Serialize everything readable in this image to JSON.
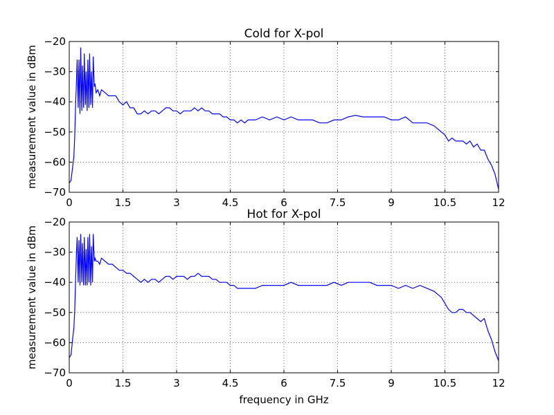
{
  "figure": {
    "xlabel": "frequency in GHz"
  },
  "chart_data": [
    {
      "type": "line",
      "title": "Cold for X-pol",
      "xlabel": "",
      "ylabel": "measurement value in dBm",
      "xlim": [
        0,
        12
      ],
      "ylim": [
        -70,
        -20
      ],
      "xticks": [
        "0",
        "1.5",
        "3",
        "4.5",
        "6",
        "7.5",
        "9",
        "10.5",
        "12"
      ],
      "yticks": [
        "−20",
        "−30",
        "−40",
        "−50",
        "−60",
        "−70"
      ],
      "grid": true,
      "line_color": "#0000ff",
      "series": [
        {
          "x": [
            0,
            0.05,
            0.1,
            0.13,
            0.15,
            0.18,
            0.2,
            0.22,
            0.25,
            0.27,
            0.3,
            0.32,
            0.35,
            0.37,
            0.4,
            0.42,
            0.45,
            0.47,
            0.5,
            0.52,
            0.55,
            0.57,
            0.6,
            0.62,
            0.65,
            0.67,
            0.7,
            0.72,
            0.75,
            0.8,
            0.85,
            0.9,
            1.0,
            1.1,
            1.2,
            1.3,
            1.4,
            1.5,
            1.6,
            1.7,
            1.8,
            1.9,
            2.0,
            2.1,
            2.2,
            2.3,
            2.4,
            2.5,
            2.6,
            2.7,
            2.8,
            2.9,
            3.0,
            3.1,
            3.2,
            3.3,
            3.4,
            3.5,
            3.6,
            3.7,
            3.8,
            3.9,
            4.0,
            4.1,
            4.2,
            4.3,
            4.4,
            4.5,
            4.6,
            4.7,
            4.8,
            4.9,
            5.0,
            5.2,
            5.4,
            5.6,
            5.8,
            6.0,
            6.2,
            6.4,
            6.6,
            6.8,
            7.0,
            7.2,
            7.4,
            7.6,
            7.8,
            8.0,
            8.2,
            8.4,
            8.6,
            8.8,
            9.0,
            9.2,
            9.4,
            9.6,
            9.8,
            10.0,
            10.2,
            10.4,
            10.5,
            10.6,
            10.7,
            10.8,
            10.9,
            11.0,
            11.1,
            11.2,
            11.3,
            11.4,
            11.5,
            11.6,
            11.7,
            11.8,
            11.9,
            12.0
          ],
          "y": [
            -67,
            -66,
            -61,
            -58,
            -52,
            -40,
            -34,
            -26,
            -42,
            -26,
            -44,
            -22,
            -43,
            -28,
            -42,
            -24,
            -41,
            -30,
            -43,
            -26,
            -42,
            -24,
            -41,
            -30,
            -42,
            -25,
            -35,
            -34,
            -37,
            -36,
            -38,
            -36,
            -37,
            -38,
            -38,
            -38,
            -40,
            -41,
            -40,
            -42,
            -42,
            -44,
            -44,
            -43,
            -44,
            -43,
            -43,
            -44,
            -43,
            -42,
            -42,
            -43,
            -43,
            -44,
            -43,
            -43,
            -43,
            -42,
            -43,
            -42,
            -43,
            -43,
            -44,
            -44,
            -44,
            -45,
            -45,
            -46,
            -46,
            -47,
            -46,
            -47,
            -46,
            -46,
            -45,
            -46,
            -45,
            -46,
            -45,
            -46,
            -46,
            -46,
            -47,
            -47,
            -46,
            -46,
            -45,
            -44.5,
            -45,
            -45,
            -45,
            -45,
            -46,
            -46,
            -45,
            -47,
            -47,
            -47,
            -48,
            -50,
            -51,
            -53,
            -52,
            -53,
            -53,
            -53,
            -54,
            -53,
            -55,
            -54,
            -56,
            -56,
            -59,
            -61,
            -64,
            -69
          ]
        }
      ]
    },
    {
      "type": "line",
      "title": "Hot for X-pol",
      "xlabel": "frequency in GHz",
      "ylabel": "measurement value in dBm",
      "xlim": [
        0,
        12
      ],
      "ylim": [
        -70,
        -20
      ],
      "xticks": [
        "0",
        "1.5",
        "3",
        "4.5",
        "6",
        "7.5",
        "9",
        "10.5",
        "12"
      ],
      "yticks": [
        "−20",
        "−30",
        "−40",
        "−50",
        "−60",
        "−70"
      ],
      "grid": true,
      "line_color": "#0000ff",
      "series": [
        {
          "x": [
            0,
            0.05,
            0.1,
            0.13,
            0.15,
            0.18,
            0.2,
            0.22,
            0.25,
            0.27,
            0.3,
            0.32,
            0.35,
            0.37,
            0.4,
            0.42,
            0.45,
            0.47,
            0.5,
            0.52,
            0.55,
            0.57,
            0.6,
            0.62,
            0.65,
            0.67,
            0.7,
            0.72,
            0.75,
            0.8,
            0.85,
            0.9,
            1.0,
            1.1,
            1.2,
            1.3,
            1.4,
            1.5,
            1.6,
            1.7,
            1.8,
            1.9,
            2.0,
            2.1,
            2.2,
            2.3,
            2.4,
            2.5,
            2.6,
            2.7,
            2.8,
            2.9,
            3.0,
            3.1,
            3.2,
            3.3,
            3.4,
            3.5,
            3.6,
            3.7,
            3.8,
            3.9,
            4.0,
            4.1,
            4.2,
            4.3,
            4.4,
            4.5,
            4.6,
            4.7,
            4.8,
            4.9,
            5.0,
            5.2,
            5.4,
            5.6,
            5.8,
            6.0,
            6.2,
            6.4,
            6.6,
            6.8,
            7.0,
            7.2,
            7.4,
            7.6,
            7.8,
            8.0,
            8.2,
            8.4,
            8.6,
            8.8,
            9.0,
            9.2,
            9.4,
            9.6,
            9.8,
            10.0,
            10.2,
            10.4,
            10.5,
            10.6,
            10.7,
            10.8,
            10.9,
            11.0,
            11.1,
            11.2,
            11.3,
            11.4,
            11.5,
            11.6,
            11.7,
            11.8,
            11.9,
            12.0
          ],
          "y": [
            -65,
            -64,
            -58,
            -55,
            -50,
            -38,
            -31,
            -25,
            -40,
            -26,
            -41,
            -24,
            -40,
            -27,
            -41,
            -25,
            -41,
            -29,
            -41,
            -25,
            -40,
            -24,
            -41,
            -28,
            -40,
            -24,
            -33,
            -32,
            -33,
            -33,
            -34,
            -32,
            -33,
            -34,
            -34,
            -35,
            -36,
            -36,
            -37,
            -37,
            -38,
            -39,
            -40,
            -39,
            -40,
            -39,
            -39,
            -40,
            -39,
            -38,
            -38,
            -39,
            -38,
            -38,
            -38,
            -39,
            -38,
            -38,
            -37,
            -38,
            -38,
            -38,
            -39,
            -39,
            -40,
            -40,
            -40,
            -41,
            -41,
            -42,
            -42,
            -42,
            -42,
            -42,
            -41,
            -41,
            -41,
            -41,
            -40,
            -41,
            -41,
            -41,
            -41,
            -41,
            -40,
            -41,
            -40,
            -40,
            -40,
            -40,
            -41,
            -41,
            -41,
            -42,
            -41,
            -42,
            -41,
            -42,
            -43,
            -45,
            -47,
            -49,
            -50,
            -50,
            -49,
            -49,
            -50,
            -50,
            -51,
            -52,
            -53,
            -52,
            -56,
            -59,
            -63,
            -66
          ]
        }
      ]
    }
  ]
}
